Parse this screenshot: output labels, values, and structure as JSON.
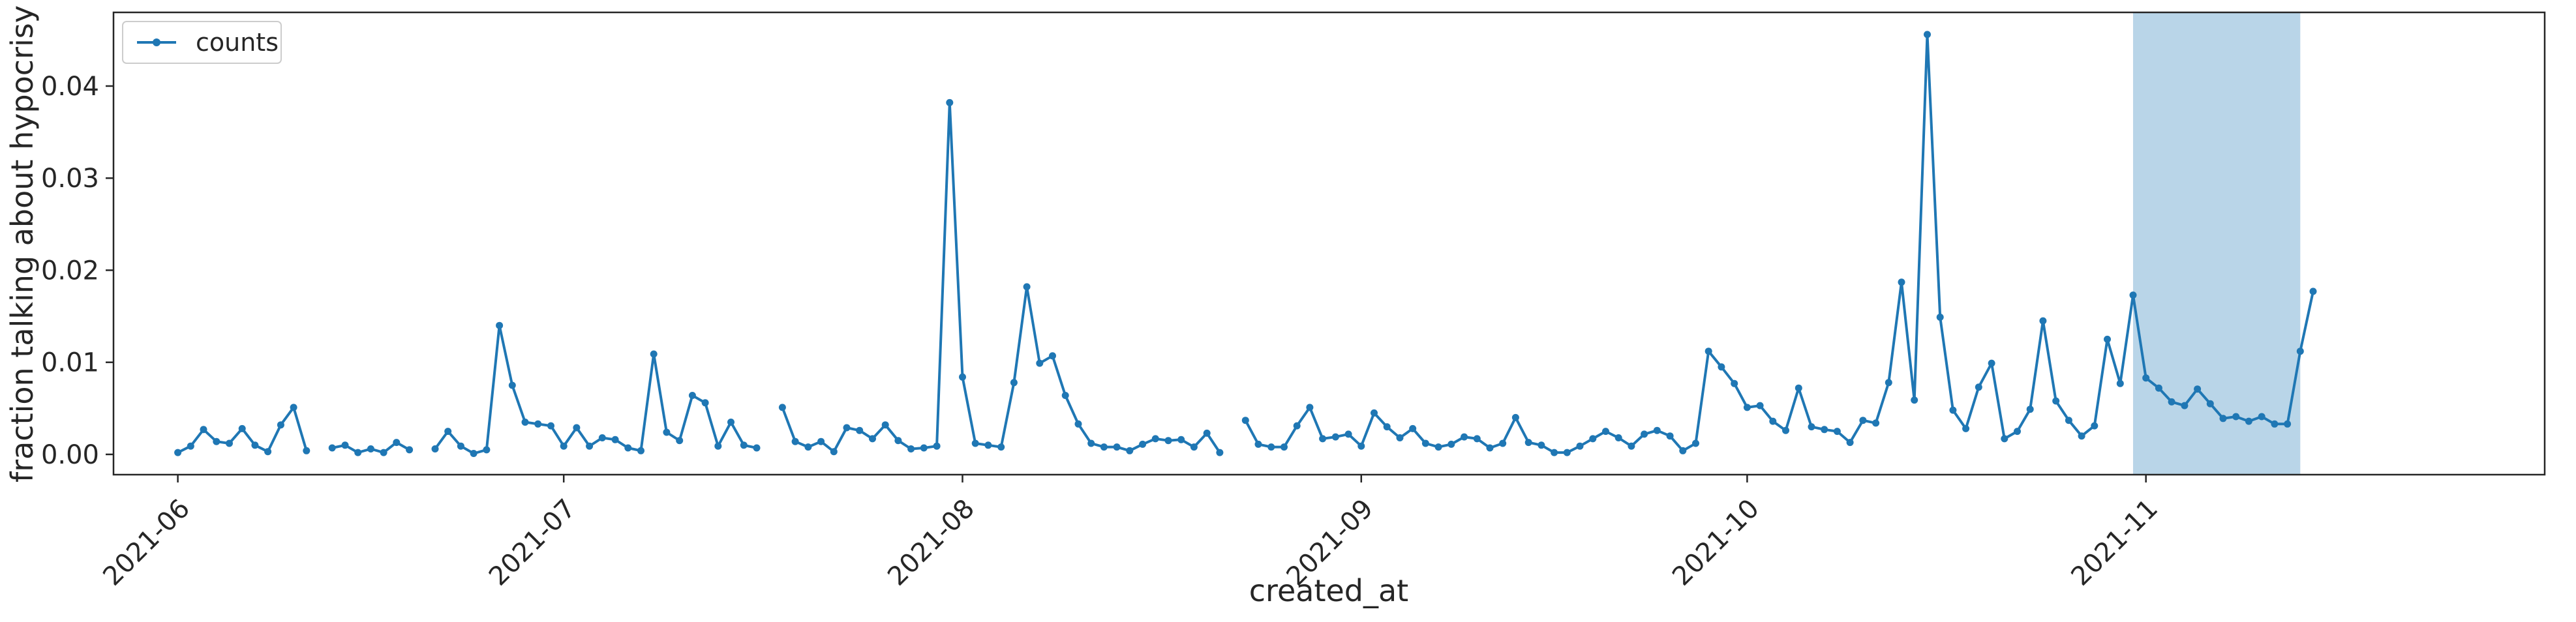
{
  "chart_data": {
    "type": "line",
    "xlabel": "created_at",
    "ylabel": "fraction talking about hypocrisy",
    "x_ticks": [
      "2021-06",
      "2021-07",
      "2021-08",
      "2021-09",
      "2021-10",
      "2021-11"
    ],
    "y_ticks": [
      "0.00",
      "0.01",
      "0.02",
      "0.03",
      "0.04"
    ],
    "xlim": [
      "2021-05-27",
      "2021-12-02"
    ],
    "ylim": [
      -0.0022,
      0.048
    ],
    "grid": false,
    "legend": {
      "position": "top-left",
      "entries": [
        "counts"
      ]
    },
    "highlight_span": {
      "start": "2021-10-31",
      "end": "2021-11-13",
      "color": "#b9d5e8"
    },
    "colors": {
      "series": "#1f77b4"
    },
    "series": [
      {
        "name": "counts",
        "segments": [
          [
            [
              "2021-06-01",
              0.0002
            ],
            [
              "2021-06-02",
              0.0009
            ],
            [
              "2021-06-03",
              0.0027
            ],
            [
              "2021-06-04",
              0.0014
            ],
            [
              "2021-06-05",
              0.0012
            ],
            [
              "2021-06-06",
              0.0028
            ],
            [
              "2021-06-07",
              0.001
            ],
            [
              "2021-06-08",
              0.0003
            ],
            [
              "2021-06-09",
              0.0032
            ],
            [
              "2021-06-10",
              0.0051
            ],
            [
              "2021-06-11",
              0.0004
            ]
          ],
          [
            [
              "2021-06-13",
              0.0007
            ],
            [
              "2021-06-14",
              0.001
            ],
            [
              "2021-06-15",
              0.0002
            ],
            [
              "2021-06-16",
              0.0006
            ],
            [
              "2021-06-17",
              0.0002
            ],
            [
              "2021-06-18",
              0.0013
            ],
            [
              "2021-06-19",
              0.0005
            ]
          ],
          [
            [
              "2021-06-21",
              0.0006
            ],
            [
              "2021-06-22",
              0.0025
            ],
            [
              "2021-06-23",
              0.0009
            ],
            [
              "2021-06-24",
              0.0001
            ],
            [
              "2021-06-25",
              0.0005
            ],
            [
              "2021-06-26",
              0.014
            ],
            [
              "2021-06-27",
              0.0075
            ],
            [
              "2021-06-28",
              0.0035
            ],
            [
              "2021-06-29",
              0.0033
            ],
            [
              "2021-06-30",
              0.0031
            ],
            [
              "2021-07-01",
              0.0009
            ],
            [
              "2021-07-02",
              0.0029
            ],
            [
              "2021-07-03",
              0.0009
            ],
            [
              "2021-07-04",
              0.0018
            ],
            [
              "2021-07-05",
              0.0016
            ],
            [
              "2021-07-06",
              0.0007
            ],
            [
              "2021-07-07",
              0.0004
            ],
            [
              "2021-07-08",
              0.0109
            ],
            [
              "2021-07-09",
              0.0024
            ],
            [
              "2021-07-10",
              0.0015
            ],
            [
              "2021-07-11",
              0.0064
            ],
            [
              "2021-07-12",
              0.0056
            ],
            [
              "2021-07-13",
              0.0009
            ],
            [
              "2021-07-14",
              0.0035
            ],
            [
              "2021-07-15",
              0.001
            ],
            [
              "2021-07-16",
              0.0007
            ]
          ],
          [
            [
              "2021-07-18",
              0.0051
            ],
            [
              "2021-07-19",
              0.0014
            ],
            [
              "2021-07-20",
              0.0008
            ],
            [
              "2021-07-21",
              0.0014
            ],
            [
              "2021-07-22",
              0.0003
            ],
            [
              "2021-07-23",
              0.0029
            ],
            [
              "2021-07-24",
              0.0026
            ],
            [
              "2021-07-25",
              0.0017
            ],
            [
              "2021-07-26",
              0.0032
            ],
            [
              "2021-07-27",
              0.0015
            ],
            [
              "2021-07-28",
              0.0006
            ],
            [
              "2021-07-29",
              0.0007
            ],
            [
              "2021-07-30",
              0.0009
            ],
            [
              "2021-07-31",
              0.0382
            ],
            [
              "2021-08-01",
              0.0084
            ],
            [
              "2021-08-02",
              0.0012
            ],
            [
              "2021-08-03",
              0.001
            ],
            [
              "2021-08-04",
              0.0008
            ],
            [
              "2021-08-05",
              0.0078
            ],
            [
              "2021-08-06",
              0.0182
            ],
            [
              "2021-08-07",
              0.0099
            ],
            [
              "2021-08-08",
              0.0107
            ],
            [
              "2021-08-09",
              0.0064
            ],
            [
              "2021-08-10",
              0.0033
            ],
            [
              "2021-08-11",
              0.0012
            ],
            [
              "2021-08-12",
              0.0008
            ],
            [
              "2021-08-13",
              0.0008
            ],
            [
              "2021-08-14",
              0.0004
            ],
            [
              "2021-08-15",
              0.0011
            ],
            [
              "2021-08-16",
              0.0017
            ],
            [
              "2021-08-17",
              0.0015
            ],
            [
              "2021-08-18",
              0.0016
            ],
            [
              "2021-08-19",
              0.0008
            ],
            [
              "2021-08-20",
              0.0023
            ],
            [
              "2021-08-21",
              0.0002
            ]
          ],
          [
            [
              "2021-08-23",
              0.0037
            ],
            [
              "2021-08-24",
              0.0011
            ],
            [
              "2021-08-25",
              0.0008
            ],
            [
              "2021-08-26",
              0.0008
            ],
            [
              "2021-08-27",
              0.0031
            ],
            [
              "2021-08-28",
              0.0051
            ],
            [
              "2021-08-29",
              0.0017
            ],
            [
              "2021-08-30",
              0.0019
            ],
            [
              "2021-08-31",
              0.0022
            ],
            [
              "2021-09-01",
              0.0009
            ],
            [
              "2021-09-02",
              0.0045
            ],
            [
              "2021-09-03",
              0.003
            ],
            [
              "2021-09-04",
              0.0018
            ],
            [
              "2021-09-05",
              0.0028
            ],
            [
              "2021-09-06",
              0.0012
            ],
            [
              "2021-09-07",
              0.0008
            ],
            [
              "2021-09-08",
              0.0011
            ],
            [
              "2021-09-09",
              0.0019
            ],
            [
              "2021-09-10",
              0.0017
            ],
            [
              "2021-09-11",
              0.0007
            ],
            [
              "2021-09-12",
              0.0012
            ],
            [
              "2021-09-13",
              0.004
            ],
            [
              "2021-09-14",
              0.0013
            ],
            [
              "2021-09-15",
              0.001
            ],
            [
              "2021-09-16",
              0.0002
            ],
            [
              "2021-09-17",
              0.0002
            ],
            [
              "2021-09-18",
              0.0009
            ],
            [
              "2021-09-19",
              0.0017
            ],
            [
              "2021-09-20",
              0.0025
            ],
            [
              "2021-09-21",
              0.0018
            ],
            [
              "2021-09-22",
              0.0009
            ],
            [
              "2021-09-23",
              0.0022
            ],
            [
              "2021-09-24",
              0.0026
            ],
            [
              "2021-09-25",
              0.002
            ],
            [
              "2021-09-26",
              0.0004
            ],
            [
              "2021-09-27",
              0.0012
            ],
            [
              "2021-09-28",
              0.0112
            ],
            [
              "2021-09-29",
              0.0095
            ],
            [
              "2021-09-30",
              0.0077
            ],
            [
              "2021-10-01",
              0.0051
            ],
            [
              "2021-10-02",
              0.0053
            ],
            [
              "2021-10-03",
              0.0036
            ],
            [
              "2021-10-04",
              0.0026
            ],
            [
              "2021-10-05",
              0.0072
            ],
            [
              "2021-10-06",
              0.003
            ],
            [
              "2021-10-07",
              0.0027
            ],
            [
              "2021-10-08",
              0.0025
            ],
            [
              "2021-10-09",
              0.0013
            ],
            [
              "2021-10-10",
              0.0037
            ],
            [
              "2021-10-11",
              0.0034
            ],
            [
              "2021-10-12",
              0.0078
            ],
            [
              "2021-10-13",
              0.0187
            ],
            [
              "2021-10-14",
              0.0059
            ],
            [
              "2021-10-15",
              0.0456
            ],
            [
              "2021-10-16",
              0.0149
            ],
            [
              "2021-10-17",
              0.0048
            ],
            [
              "2021-10-18",
              0.0028
            ],
            [
              "2021-10-19",
              0.0073
            ],
            [
              "2021-10-20",
              0.0099
            ],
            [
              "2021-10-21",
              0.0017
            ],
            [
              "2021-10-22",
              0.0025
            ],
            [
              "2021-10-23",
              0.0049
            ],
            [
              "2021-10-24",
              0.0145
            ],
            [
              "2021-10-25",
              0.0058
            ],
            [
              "2021-10-26",
              0.0037
            ],
            [
              "2021-10-27",
              0.002
            ],
            [
              "2021-10-28",
              0.0031
            ],
            [
              "2021-10-29",
              0.0125
            ],
            [
              "2021-10-30",
              0.0077
            ],
            [
              "2021-10-31",
              0.0173
            ],
            [
              "2021-11-01",
              0.0083
            ],
            [
              "2021-11-02",
              0.0072
            ],
            [
              "2021-11-03",
              0.0057
            ],
            [
              "2021-11-04",
              0.0053
            ],
            [
              "2021-11-05",
              0.0071
            ],
            [
              "2021-11-06",
              0.0055
            ],
            [
              "2021-11-07",
              0.0039
            ],
            [
              "2021-11-08",
              0.0041
            ],
            [
              "2021-11-09",
              0.0036
            ],
            [
              "2021-11-10",
              0.0041
            ],
            [
              "2021-11-11",
              0.0033
            ],
            [
              "2021-11-12",
              0.0033
            ],
            [
              "2021-11-13",
              0.0112
            ],
            [
              "2021-11-14",
              0.0177
            ]
          ]
        ]
      }
    ]
  }
}
